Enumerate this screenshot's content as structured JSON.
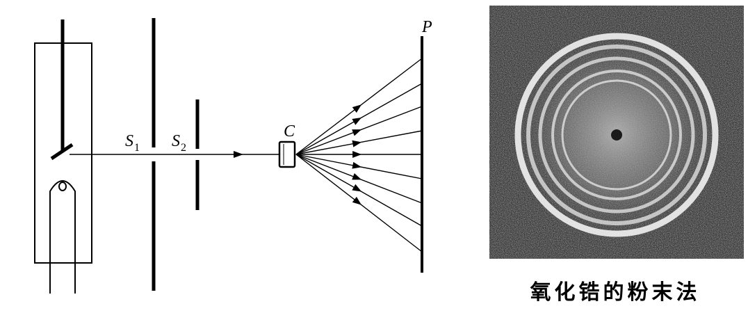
{
  "diagram": {
    "labels": {
      "s1": {
        "letter": "S",
        "subscript": "1"
      },
      "s2": {
        "letter": "S",
        "subscript": "2"
      },
      "crystal": "C",
      "plate": "P"
    }
  },
  "photo": {
    "caption": "氧化锆的粉末法",
    "ring_count": 5
  },
  "colors": {
    "ink": "#000000",
    "paper": "#ffffff",
    "photo_background": "#3a3a3a"
  }
}
